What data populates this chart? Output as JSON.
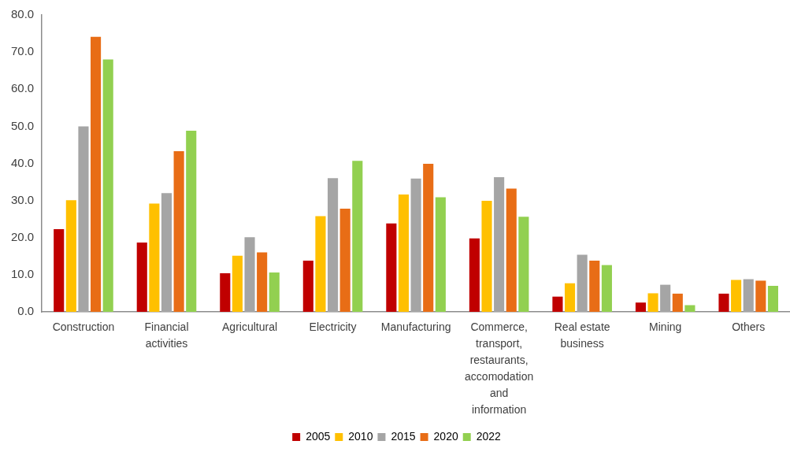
{
  "chart_data": {
    "type": "bar",
    "categories": [
      "Construction",
      "Financial activities",
      "Agricultural",
      "Electricity",
      "Manufacturing",
      "Commerce, transport, restaurants, accomodation and information",
      "Real estate business",
      "Mining",
      "Others"
    ],
    "series": [
      {
        "name": "2005",
        "color": "#c00000",
        "values": [
          22.3,
          18.7,
          10.4,
          13.8,
          23.8,
          19.8,
          4.1,
          2.5,
          4.9
        ]
      },
      {
        "name": "2010",
        "color": "#ffc000",
        "values": [
          30.1,
          29.2,
          15.1,
          25.8,
          31.6,
          29.9,
          7.7,
          5.0,
          8.6
        ]
      },
      {
        "name": "2015",
        "color": "#a5a5a5",
        "values": [
          50.0,
          32.0,
          20.1,
          36.0,
          35.9,
          36.3,
          15.4,
          7.3,
          8.8
        ]
      },
      {
        "name": "2020",
        "color": "#e86d16",
        "values": [
          74.1,
          43.3,
          16.0,
          27.8,
          39.9,
          33.2,
          13.8,
          4.9,
          8.4
        ]
      },
      {
        "name": "2022",
        "color": "#92d050",
        "values": [
          68.0,
          48.8,
          10.6,
          40.7,
          30.9,
          25.6,
          12.6,
          1.8,
          7.0
        ]
      }
    ],
    "ylim": [
      0,
      80
    ],
    "yticks": [
      {
        "value": 0,
        "label": "0.0"
      },
      {
        "value": 10,
        "label": "10.0"
      },
      {
        "value": 20,
        "label": "20.0"
      },
      {
        "value": 30,
        "label": "30.0"
      },
      {
        "value": 40,
        "label": "40.0"
      },
      {
        "value": 50,
        "label": "50.0"
      },
      {
        "value": 60,
        "label": "60.0"
      },
      {
        "value": 70,
        "label": "70.0"
      },
      {
        "value": 80,
        "label": "80.0"
      }
    ],
    "grid": false,
    "legend": "bottom"
  }
}
